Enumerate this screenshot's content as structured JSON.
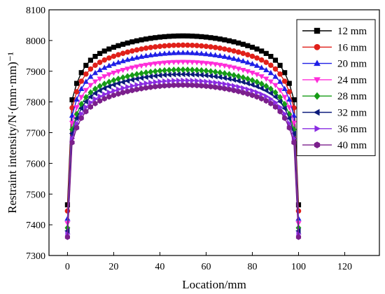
{
  "chart_data": {
    "type": "scatter",
    "xlabel": "Location/mm",
    "ylabel": "Restraint intensity/N·(mm·mm)⁻¹",
    "xlim": [
      -8,
      135
    ],
    "ylim": [
      7300,
      8100
    ],
    "xticks": [
      0,
      20,
      40,
      60,
      80,
      100,
      120
    ],
    "yticks": [
      7300,
      7400,
      7500,
      7600,
      7700,
      7800,
      7900,
      8000,
      8100
    ],
    "grid": false,
    "legend_position": "top-right",
    "x": [
      0,
      2,
      4,
      6,
      8,
      10,
      12,
      14,
      16,
      18,
      20,
      22,
      24,
      26,
      28,
      30,
      32,
      34,
      36,
      38,
      40,
      42,
      44,
      46,
      48,
      50,
      52,
      54,
      56,
      58,
      60,
      62,
      64,
      66,
      68,
      70,
      72,
      74,
      76,
      78,
      80,
      82,
      84,
      86,
      88,
      90,
      92,
      94,
      96,
      98,
      100
    ],
    "series": [
      {
        "name": "12 mm",
        "color": "#000000",
        "marker": "square",
        "edge_value": 7465,
        "peak_value": 8015
      },
      {
        "name": "16 mm",
        "color": "#e0201a",
        "marker": "circle",
        "edge_value": 7445,
        "peak_value": 7985
      },
      {
        "name": "20 mm",
        "color": "#1f1fe6",
        "marker": "triangle-up",
        "edge_value": 7420,
        "peak_value": 7960
      },
      {
        "name": "24 mm",
        "color": "#ff2bd9",
        "marker": "triangle-down",
        "edge_value": 7405,
        "peak_value": 7930
      },
      {
        "name": "28 mm",
        "color": "#169c16",
        "marker": "diamond",
        "edge_value": 7390,
        "peak_value": 7905
      },
      {
        "name": "32 mm",
        "color": "#0b1a7a",
        "marker": "triangle-left",
        "edge_value": 7380,
        "peak_value": 7890
      },
      {
        "name": "36 mm",
        "color": "#8a2be2",
        "marker": "triangle-right",
        "edge_value": 7370,
        "peak_value": 7870
      },
      {
        "name": "40 mm",
        "color": "#7b1f8c",
        "marker": "hexagon",
        "edge_value": 7360,
        "peak_value": 7855
      }
    ]
  }
}
